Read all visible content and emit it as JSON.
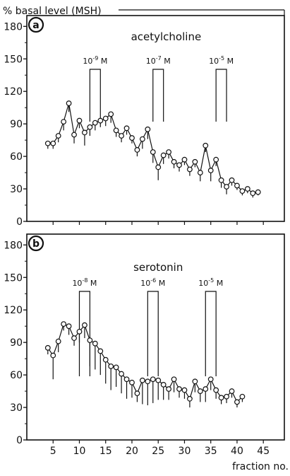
{
  "figure": {
    "ylabel": "% basal level (MSH)",
    "xlabel": "fraction no.",
    "x_ticks": [
      5,
      10,
      15,
      20,
      25,
      30,
      35,
      40,
      45
    ],
    "y_ticks": [
      0,
      30,
      60,
      90,
      120,
      150,
      180
    ],
    "colors": {
      "ink": "#111111",
      "marker_fill": "#ffffff"
    }
  },
  "chart_data": [
    {
      "type": "line",
      "panel_letter": "a",
      "title": "acetylcholine",
      "xlabel": "fraction no.",
      "ylabel": "% basal level (MSH)",
      "xlim": [
        0,
        49
      ],
      "ylim": [
        0,
        190
      ],
      "grid": false,
      "series": [
        {
          "x": [
            4,
            5,
            6,
            7,
            8,
            9,
            10,
            11,
            12,
            13,
            14,
            15,
            16,
            17,
            18,
            19,
            20,
            21,
            22,
            23,
            24,
            25,
            26,
            27,
            28,
            29,
            30,
            31,
            32,
            33,
            34,
            35,
            36,
            37,
            38,
            39,
            40,
            41,
            42,
            43,
            44
          ],
          "y": [
            72,
            72,
            79,
            92,
            109,
            80,
            93,
            82,
            87,
            91,
            93,
            95,
            99,
            84,
            79,
            86,
            77,
            66,
            76,
            85,
            64,
            50,
            61,
            64,
            55,
            52,
            57,
            48,
            55,
            45,
            70,
            47,
            57,
            38,
            32,
            38,
            33,
            28,
            30,
            26,
            27
          ],
          "error_minus": [
            5,
            5,
            6,
            8,
            8,
            8,
            7,
            12,
            8,
            7,
            6,
            7,
            8,
            6,
            6,
            6,
            5,
            6,
            9,
            9,
            10,
            12,
            8,
            6,
            6,
            6,
            5,
            6,
            5,
            8,
            6,
            10,
            6,
            7,
            7,
            5,
            4,
            4,
            4,
            4,
            3
          ]
        }
      ],
      "stimuli": [
        {
          "label_base": "10",
          "label_exp": "-9",
          "label_unit": " M",
          "x_start": 12,
          "x_end": 14
        },
        {
          "label_base": "10",
          "label_exp": "-7",
          "label_unit": " M",
          "x_start": 24,
          "x_end": 26
        },
        {
          "label_base": "10",
          "label_exp": "-5",
          "label_unit": " M",
          "x_start": 36,
          "x_end": 38
        }
      ]
    },
    {
      "type": "line",
      "panel_letter": "b",
      "title": "serotonin",
      "xlabel": "fraction no.",
      "ylabel": "% basal level (MSH)",
      "xlim": [
        0,
        49
      ],
      "ylim": [
        0,
        190
      ],
      "grid": false,
      "series": [
        {
          "x": [
            4,
            5,
            6,
            7,
            8,
            9,
            10,
            11,
            12,
            13,
            14,
            15,
            16,
            17,
            18,
            19,
            20,
            21,
            22,
            23,
            24,
            25,
            26,
            27,
            28,
            29,
            30,
            31,
            32,
            33,
            34,
            35,
            36,
            37,
            38,
            39,
            40,
            41
          ],
          "y": [
            85,
            78,
            91,
            107,
            105,
            94,
            100,
            106,
            92,
            89,
            82,
            74,
            68,
            67,
            61,
            56,
            53,
            43,
            55,
            54,
            56,
            55,
            51,
            47,
            56,
            47,
            46,
            38,
            54,
            45,
            47,
            56,
            46,
            39,
            40,
            45,
            35,
            40
          ],
          "error_minus": [
            6,
            22,
            10,
            6,
            8,
            7,
            10,
            12,
            24,
            24,
            22,
            22,
            22,
            18,
            18,
            18,
            14,
            8,
            22,
            22,
            22,
            18,
            14,
            10,
            12,
            8,
            8,
            8,
            10,
            10,
            12,
            10,
            8,
            6,
            6,
            6,
            5,
            5
          ]
        }
      ],
      "stimuli": [
        {
          "label_base": "10",
          "label_exp": "-8",
          "label_unit": " M",
          "x_start": 10,
          "x_end": 12
        },
        {
          "label_base": "10",
          "label_exp": "-6",
          "label_unit": " M",
          "x_start": 23,
          "x_end": 25
        },
        {
          "label_base": "10",
          "label_exp": "-5",
          "label_unit": " M",
          "x_start": 34,
          "x_end": 36
        }
      ]
    }
  ]
}
